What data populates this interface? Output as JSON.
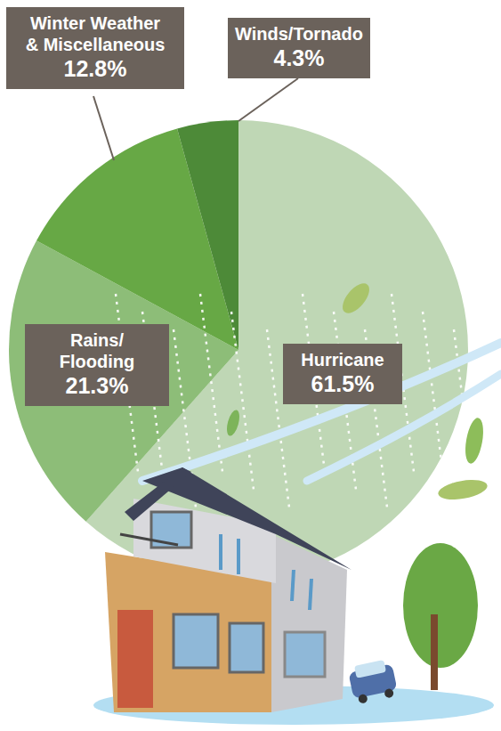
{
  "chart_data": {
    "type": "pie",
    "categories": [
      "Hurricane",
      "Rains/Flooding",
      "Winter Weather & Miscellaneous",
      "Winds/Tornado"
    ],
    "values": [
      61.5,
      21.3,
      12.8,
      4.3
    ],
    "value_labels": [
      "61.5%",
      "21.3%",
      "12.8%",
      "4.3%"
    ],
    "colors": [
      "#bfd7b5",
      "#8dbd78",
      "#67a845",
      "#4d8a38"
    ],
    "data_labels": true
  }
}
